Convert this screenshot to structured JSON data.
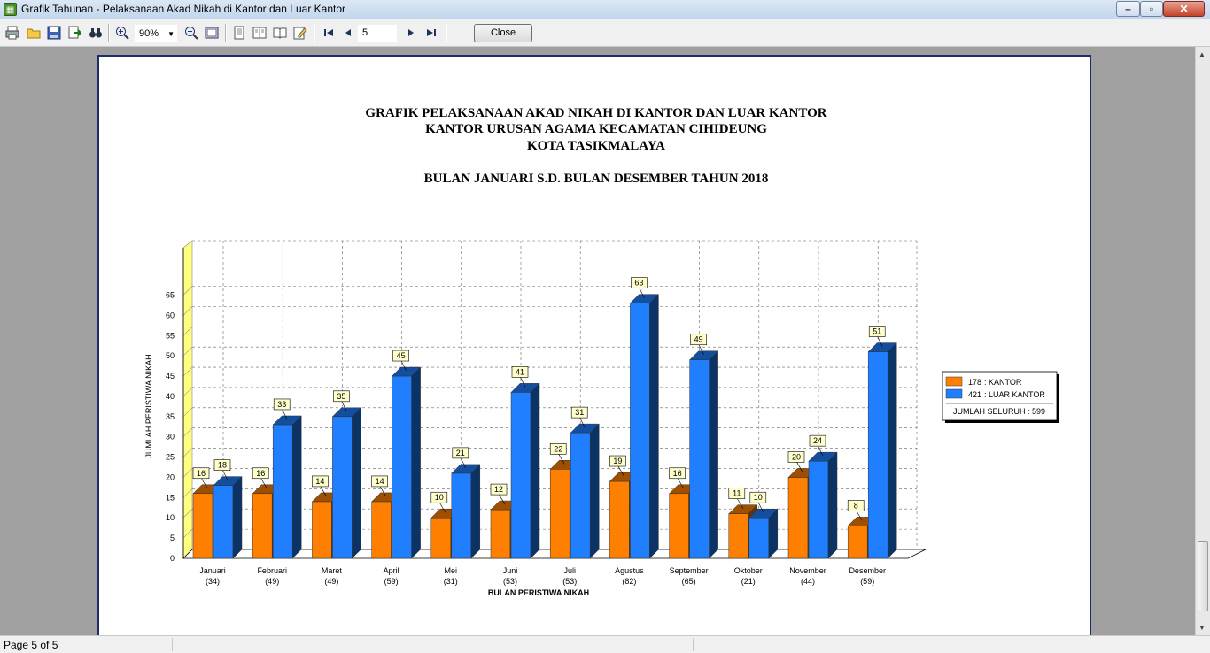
{
  "window": {
    "title": "Grafik Tahunan - Pelaksanaan Akad Nikah di Kantor dan Luar Kantor"
  },
  "toolbar": {
    "zoom": "90%",
    "page_input": "5",
    "close_label": "Close"
  },
  "status": {
    "page_text": "Page 5 of 5"
  },
  "report": {
    "title_lines": [
      "GRAFIK PELAKSANAAN AKAD NIKAH DI KANTOR DAN LUAR KANTOR",
      "KANTOR URUSAN AGAMA KECAMATAN CIHIDEUNG",
      "KOTA TASIKMALAYA",
      "BULAN JANUARI S.D. BULAN DESEMBER TAHUN 2018"
    ]
  },
  "legend": {
    "items": [
      {
        "count": "178",
        "label": ": KANTOR",
        "color": "#ff8000"
      },
      {
        "count": "421",
        "label": ": LUAR KANTOR",
        "color": "#1f7fff"
      }
    ],
    "total": "JUMLAH SELURUH : 599"
  },
  "chart_data": {
    "type": "bar",
    "categories": [
      "Januari",
      "Februari",
      "Maret",
      "April",
      "Mei",
      "Juni",
      "Juli",
      "Agustus",
      "September",
      "Oktober",
      "November",
      "Desember"
    ],
    "category_totals": [
      "(34)",
      "(49)",
      "(49)",
      "(59)",
      "(31)",
      "(53)",
      "(53)",
      "(82)",
      "(65)",
      "(21)",
      "(44)",
      "(59)"
    ],
    "series": [
      {
        "values": [
          16,
          16,
          14,
          14,
          10,
          12,
          22,
          19,
          16,
          11,
          20,
          8
        ],
        "color": "#ff8000"
      },
      {
        "values": [
          18,
          33,
          35,
          45,
          21,
          41,
          31,
          63,
          49,
          10,
          24,
          51
        ],
        "color": "#1f7fff"
      }
    ],
    "xlabel": "BULAN PERISTIWA NIKAH",
    "ylabel": "JUMLAH PERISTIWA NIKAH",
    "ylim": [
      0,
      65
    ],
    "yticks": [
      0,
      5,
      10,
      15,
      20,
      25,
      30,
      35,
      40,
      45,
      50,
      55,
      60,
      65
    ],
    "grid": true,
    "legend_position": "right"
  }
}
